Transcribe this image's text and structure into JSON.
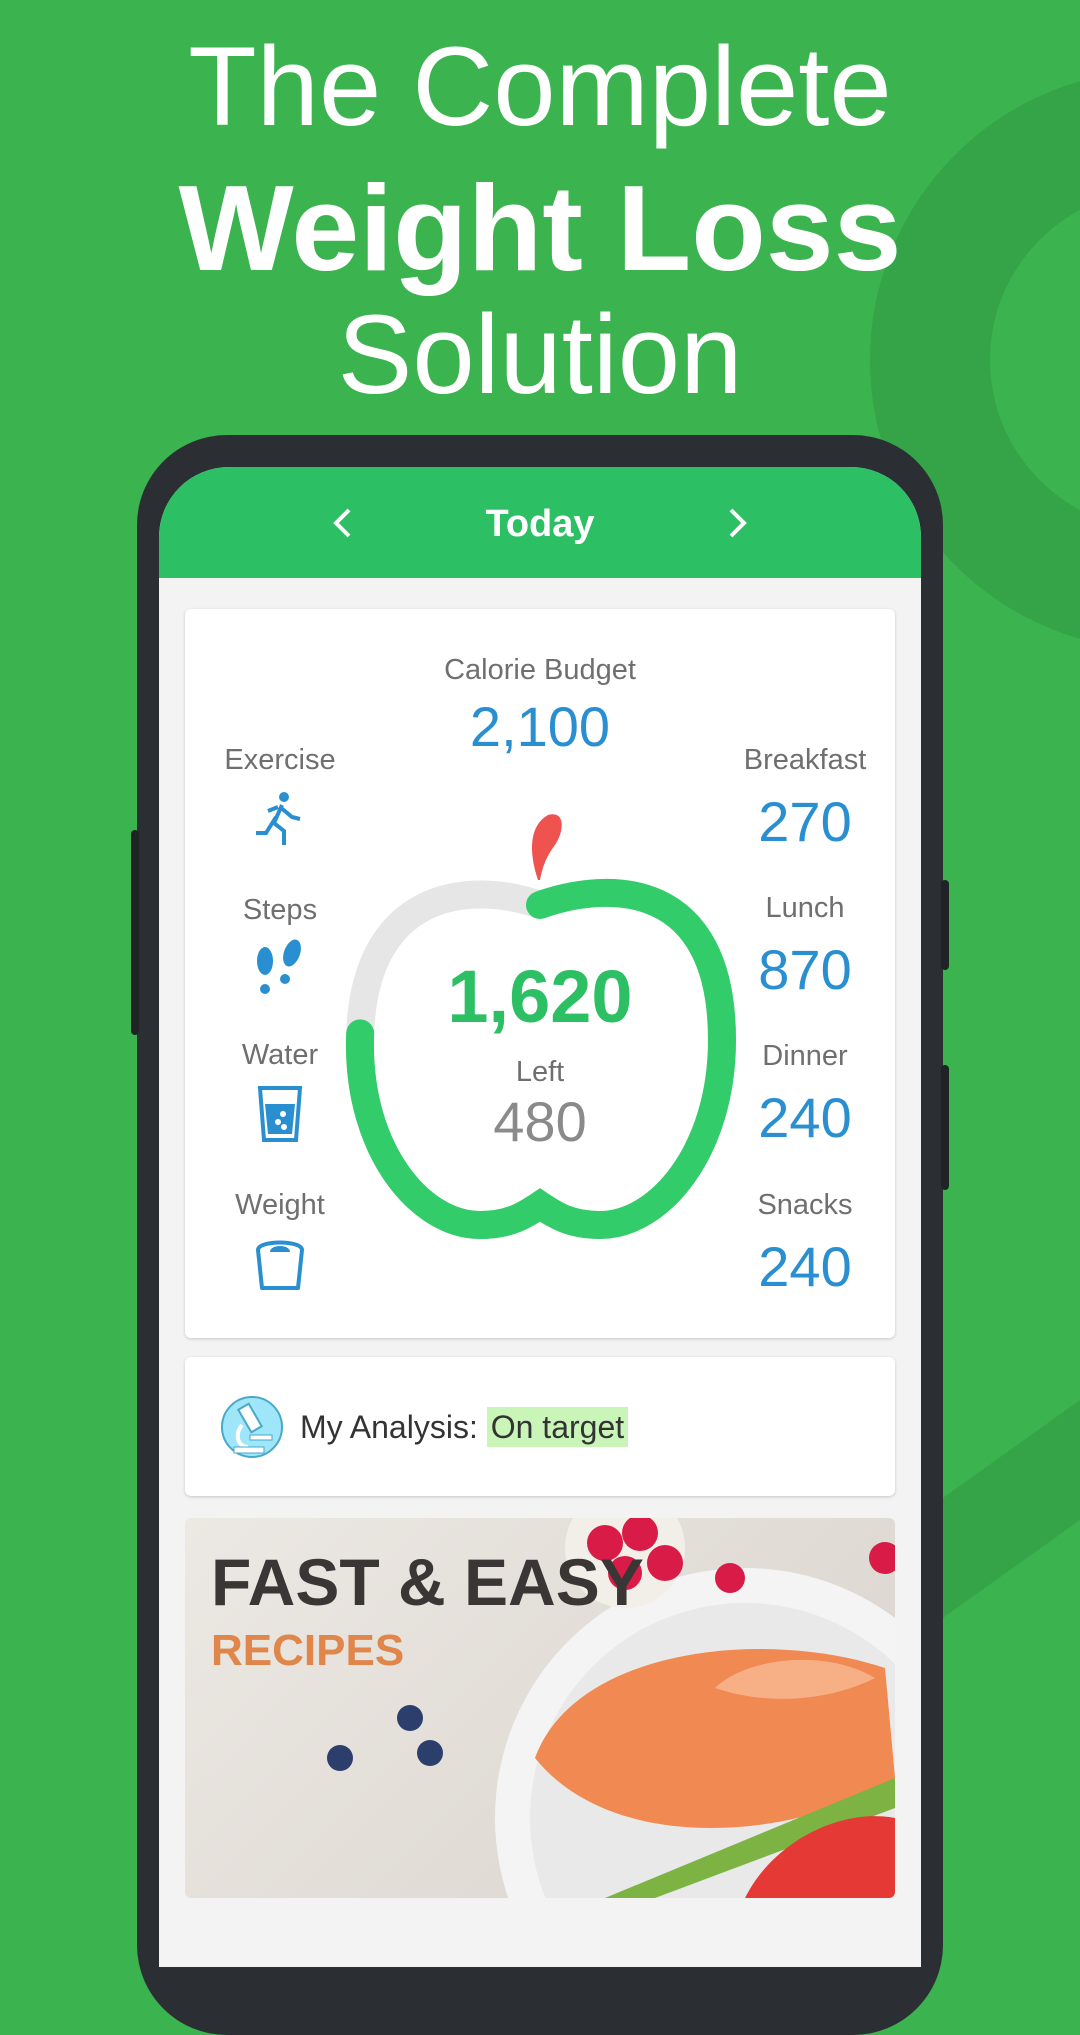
{
  "headline": {
    "line1": "The Complete",
    "line2": "Weight Loss",
    "line3": "Solution"
  },
  "header": {
    "title": "Today",
    "prev_icon": "chevron-left-icon",
    "next_icon": "chevron-right-icon"
  },
  "summary": {
    "budget_label": "Calorie Budget",
    "budget_value": "2,100",
    "consumed_value": "1,620",
    "left_label": "Left",
    "left_value": "480",
    "progress_fraction": 0.771,
    "trackers": [
      {
        "label": "Exercise",
        "icon": "running-icon"
      },
      {
        "label": "Steps",
        "icon": "footsteps-icon"
      },
      {
        "label": "Water",
        "icon": "water-glass-icon"
      },
      {
        "label": "Weight",
        "icon": "scale-icon"
      }
    ],
    "meals": [
      {
        "label": "Breakfast",
        "value": "270"
      },
      {
        "label": "Lunch",
        "value": "870"
      },
      {
        "label": "Dinner",
        "value": "240"
      },
      {
        "label": "Snacks",
        "value": "240"
      }
    ]
  },
  "analysis": {
    "label": "My Analysis:",
    "status": "On target",
    "icon": "microscope-icon"
  },
  "banner": {
    "title": "FAST & EASY",
    "subtitle": "RECIPES"
  },
  "colors": {
    "background": "#3bb34f",
    "header": "#2dbf64",
    "accent_blue": "#2a8fd0",
    "progress_green": "#33cc6a",
    "leaf_red": "#ef5350",
    "highlight": "#c9f5b9"
  }
}
